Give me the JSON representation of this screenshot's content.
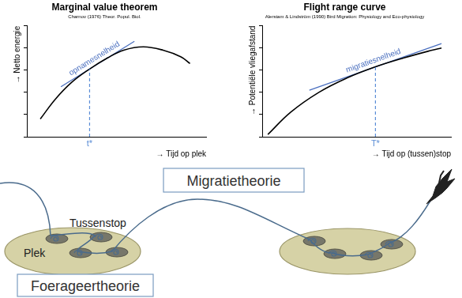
{
  "chart_data": [
    {
      "type": "line",
      "title": "Marginal value theorem",
      "subtitle": "Charnov (1976) Theor. Popul. Biol.",
      "x_label": "→ Tijd op plek",
      "y_label": "→ Netto energie",
      "x": [
        0.75,
        1.6,
        2.5,
        3.5,
        4.5,
        5.4,
        6.5,
        7.6,
        8.6,
        9.1
      ],
      "values": [
        1.6,
        3.4,
        4.9,
        6.1,
        7.1,
        7.8,
        8.1,
        7.8,
        7.2,
        6.6
      ],
      "color": "#000000",
      "xlim": [
        0,
        10
      ],
      "ylim": [
        0,
        10
      ],
      "xticks": [],
      "yticks": [
        0,
        2,
        4,
        6,
        8,
        10
      ],
      "tick_labels": false,
      "grid": false,
      "annotations": [
        {
          "text": "opnamesnelheid",
          "x": [
            1.9,
            6.0
          ],
          "y": [
            4.5,
            8.6
          ],
          "color": "#4a6fbf"
        },
        {
          "text": "t*",
          "x": 3.5,
          "color": "#5b8dd6",
          "line_style": "dashed"
        }
      ]
    },
    {
      "type": "line",
      "title": "Flight range curve",
      "subtitle": "Alerstam & Lindström (1990) Bird Migration: Physiology and Eco-physiology",
      "x_label": "→ Tijd op (tussen)stop",
      "y_label": "→ Potentiële vliegafstand",
      "x": [
        0.3,
        1.5,
        3,
        4.5,
        6,
        7.5,
        9,
        9.5
      ],
      "values": [
        0.2,
        2.2,
        4.0,
        5.3,
        6.3,
        7.1,
        7.8,
        8.0
      ],
      "color": "#000000",
      "xlim": [
        0,
        10
      ],
      "ylim": [
        0,
        10
      ],
      "xticks": [],
      "yticks": [
        0,
        2,
        4,
        6,
        8,
        10
      ],
      "tick_labels": false,
      "grid": false,
      "annotations": [
        {
          "text": "migratiesnelheid",
          "x": [
            2.5,
            9.5
          ],
          "y": [
            4.2,
            8.4
          ],
          "color": "#4a6fbf"
        },
        {
          "text": "T*",
          "x": 6,
          "color": "#5b8dd6",
          "line_style": "dashed"
        }
      ]
    }
  ],
  "diagram": {
    "migration_box": "Migratietheorie",
    "stopover_label": "Tussenstop",
    "patch_label": "Plek",
    "foraging_box": "Foerageertheorie"
  }
}
